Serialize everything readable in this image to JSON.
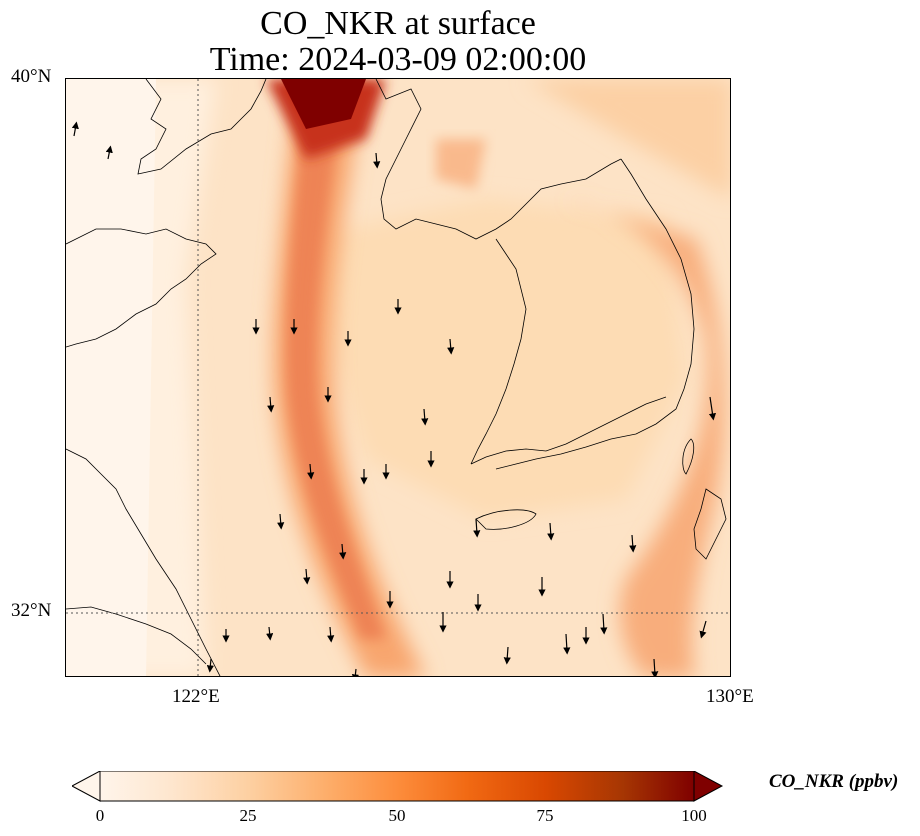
{
  "title": {
    "line1": "CO_NKR at surface",
    "line2": "Time: 2024-03-09 02:00:00"
  },
  "axes": {
    "y_ticks": [
      {
        "label": "40°N",
        "lat": 40
      },
      {
        "label": "32°N",
        "lat": 32
      }
    ],
    "x_ticks": [
      {
        "label": "122°E",
        "lon": 122
      },
      {
        "label": "130°E",
        "lon": 130
      }
    ],
    "lon_range": [
      120,
      130
    ],
    "lat_range": [
      31,
      40
    ],
    "gridlines": "dotted"
  },
  "colorbar": {
    "label": "CO_NKR (ppbv)",
    "ticks": [
      "0",
      "25",
      "50",
      "75",
      "100"
    ],
    "min": 0,
    "max": 100,
    "extend": "both",
    "colors": [
      "#fff5eb",
      "#fee6ce",
      "#fdd0a2",
      "#fdae6b",
      "#fd8d3c",
      "#f16913",
      "#d94801",
      "#a63603",
      "#7f2704"
    ],
    "colormap": "OrRd"
  },
  "wind_vectors": "black arrows, mostly pointing south"
}
